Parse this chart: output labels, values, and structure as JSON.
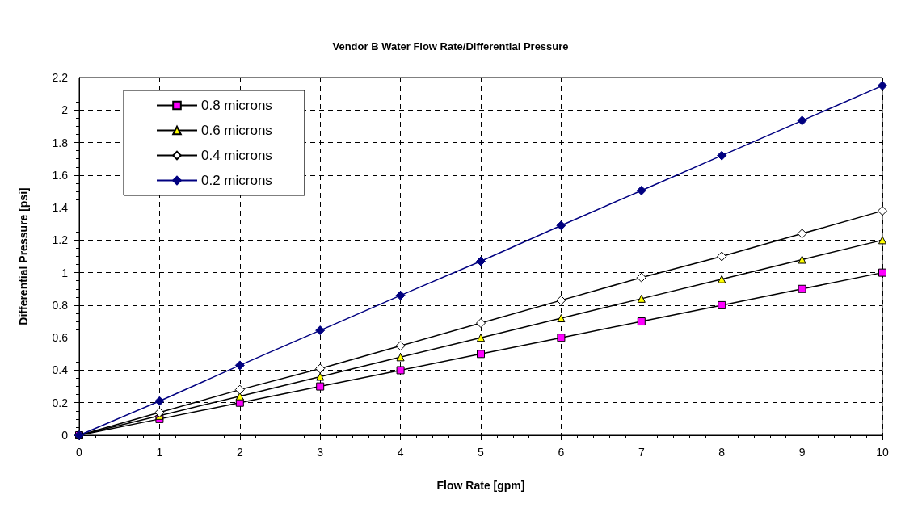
{
  "chart_data": {
    "type": "line",
    "title": "Vendor B Water Flow Rate/Differential Pressure",
    "xlabel": "Flow Rate [gpm]",
    "ylabel": "Differential Pressure [psi]",
    "x": [
      0,
      1,
      2,
      3,
      4,
      5,
      6,
      7,
      8,
      9,
      10
    ],
    "series": [
      {
        "name": "0.8 microns",
        "color": "#000000",
        "colors": [
          "#ff00ff",
          "#ff00ff",
          "#ff00ff",
          "#ff00ff",
          "#ff00ff",
          "#ff00ff",
          "#ff00ff",
          "#ff00ff",
          "#ff00ff",
          "#ff00ff",
          "#ff00ff"
        ],
        "marker": "square",
        "values": [
          0,
          0.1,
          0.2,
          0.3,
          0.4,
          0.5,
          0.6,
          0.7,
          0.8,
          0.9,
          1.0
        ]
      },
      {
        "name": "0.6 microns",
        "color": "#000000",
        "colors": [
          "#ffff00",
          "#ffff00",
          "#ffff00",
          "#ffff00",
          "#ffff00",
          "#ffff00",
          "#ffff00",
          "#ffff00",
          "#ffff00",
          "#ffff00",
          "#ffff00"
        ],
        "marker": "triangle",
        "values": [
          0,
          0.12,
          0.24,
          0.36,
          0.48,
          0.6,
          0.72,
          0.84,
          0.96,
          1.08,
          1.2
        ]
      },
      {
        "name": "0.4 microns",
        "color": "#000000",
        "colors": [
          "#ffffff",
          "#ffffff",
          "#ffffff",
          "#ffffff",
          "#ffffff",
          "#ffffff",
          "#ffffff",
          "#ffffff",
          "#ffffff",
          "#ffffff",
          "#ffffff"
        ],
        "marker": "diamond",
        "values": [
          0,
          0.14,
          0.28,
          0.41,
          0.55,
          0.69,
          0.83,
          0.97,
          1.1,
          1.24,
          1.38
        ]
      },
      {
        "name": "0.2 microns",
        "color": "#000080",
        "colors": [
          "#000080",
          "#000080",
          "#000080",
          "#000080",
          "#000080",
          "#000080",
          "#000080",
          "#000080",
          "#000080",
          "#000080",
          "#000080"
        ],
        "marker": "diamond",
        "values": [
          0,
          0.21,
          0.43,
          0.645,
          0.86,
          1.07,
          1.29,
          1.505,
          1.72,
          1.935,
          2.15
        ]
      }
    ],
    "xlim": [
      0,
      10
    ],
    "xticks": [
      0,
      1,
      2,
      3,
      4,
      5,
      6,
      7,
      8,
      9,
      10
    ],
    "ylim": [
      0,
      2.2
    ],
    "yticks": [
      0,
      0.2,
      0.4,
      0.6,
      0.8,
      1,
      1.2,
      1.4,
      1.6,
      1.8,
      2,
      2.2
    ],
    "grid": true,
    "legend": "top left",
    "line_style": "solid"
  }
}
